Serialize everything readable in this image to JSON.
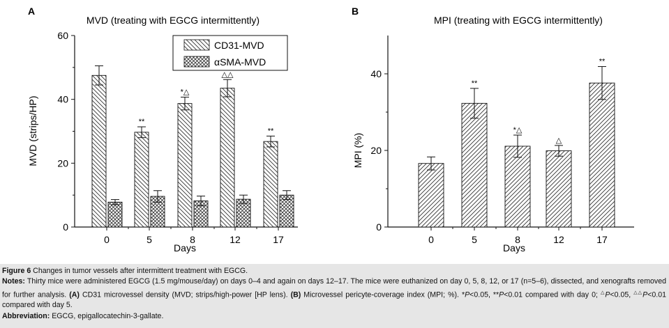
{
  "chart_data": [
    {
      "panel": "A",
      "type": "bar",
      "title": "MVD (treating with EGCG intermittently)",
      "xlabel": "Days",
      "ylabel": "MVD (strips/HP)",
      "categories": [
        "0",
        "5",
        "8",
        "12",
        "17"
      ],
      "ylim": [
        0,
        60
      ],
      "yticks": [
        "0",
        "20",
        "40",
        "60"
      ],
      "legend_position": "top-center",
      "series": [
        {
          "name": "CD31-MVD",
          "pattern": "diagonal",
          "values": [
            47.5,
            29.7,
            38.7,
            43.5,
            26.8
          ],
          "errors": [
            3.0,
            1.7,
            2.0,
            2.7,
            1.7
          ]
        },
        {
          "name": "αSMA-MVD",
          "pattern": "crosshatch",
          "values": [
            7.8,
            9.6,
            8.2,
            8.7,
            10.0
          ],
          "errors": [
            0.8,
            1.8,
            1.5,
            1.3,
            1.4
          ]
        }
      ],
      "annotations": [
        {
          "category": "5",
          "text": "**"
        },
        {
          "category": "8",
          "text": "*△"
        },
        {
          "category": "12",
          "text": "△△"
        },
        {
          "category": "17",
          "text": "**"
        }
      ]
    },
    {
      "panel": "B",
      "type": "bar",
      "title": "MPI (treating with EGCG intermittently)",
      "xlabel": "Days",
      "ylabel": "MPI (%)",
      "categories": [
        "0",
        "5",
        "8",
        "12",
        "17"
      ],
      "ylim": [
        0,
        50
      ],
      "yticks": [
        "0",
        "20",
        "40"
      ],
      "series": [
        {
          "name": "MPI",
          "pattern": "diagonal",
          "values": [
            16.6,
            32.3,
            21.1,
            19.9,
            37.6
          ],
          "errors": [
            1.7,
            3.9,
            2.9,
            1.4,
            4.3
          ]
        }
      ],
      "annotations": [
        {
          "category": "5",
          "text": "**"
        },
        {
          "category": "8",
          "text": "*△"
        },
        {
          "category": "12",
          "text": "△"
        },
        {
          "category": "17",
          "text": "**"
        }
      ]
    }
  ],
  "caption": {
    "figure_label": "Figure 6",
    "figure_text": " Changes in tumor vessels after intermittent treatment with EGCG.",
    "notes_label": "Notes:",
    "notes_text": " Thirty mice were administered EGCG (1.5 mg/mouse/day) on days 0–4 and again on days 12–17. The mice were euthanized on day 0, 5, 8, 12, or 17 (n=5–6), dissected, and xenografts removed for further analysis. ",
    "panel_a_label": "(A)",
    "panel_a_text": " CD31 microvessel density (MVD; strips/high-power [HP lens). ",
    "panel_b_label": "(B)",
    "panel_b_text": " Microvessel pericyte-coverage index (MPI; %). ",
    "sig_1": "*",
    "sig_1_p": "P",
    "sig_1_text": "<0.05, **",
    "sig_2_p": "P",
    "sig_2_text": "<0.01 compared with day 0; ",
    "sig_3_mark": "△",
    "sig_3_p": "P",
    "sig_3_text": "<0.05, ",
    "sig_4_mark": "△△",
    "sig_4_p": "P",
    "sig_4_text": "<0.01 compared with day 5.",
    "abbrev_label": "Abbreviation:",
    "abbrev_text": " EGCG, epigallocatechin-3-gallate."
  }
}
